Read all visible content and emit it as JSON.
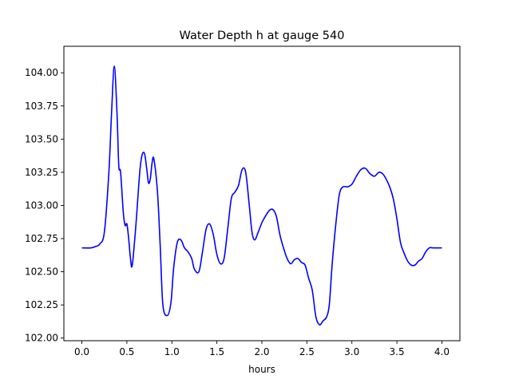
{
  "chart_data": {
    "type": "line",
    "title": "Water Depth h at gauge 540",
    "xlabel": "hours",
    "ylabel": "",
    "xlim": [
      -0.2,
      4.2
    ],
    "ylim": [
      101.98,
      104.2
    ],
    "grid": false,
    "legend": "none",
    "x_ticks": [
      0.0,
      0.5,
      1.0,
      1.5,
      2.0,
      2.5,
      3.0,
      3.5,
      4.0
    ],
    "x_tick_labels": [
      "0.0",
      "0.5",
      "1.0",
      "1.5",
      "2.0",
      "2.5",
      "3.0",
      "3.5",
      "4.0"
    ],
    "y_ticks": [
      102.0,
      102.25,
      102.5,
      102.75,
      103.0,
      103.25,
      103.5,
      103.75,
      104.0
    ],
    "y_tick_labels": [
      "102.00",
      "102.25",
      "102.50",
      "102.75",
      "103.00",
      "103.25",
      "103.50",
      "103.75",
      "104.00"
    ],
    "series": [
      {
        "color": "#0000ff",
        "x": [
          0.0,
          0.1,
          0.15,
          0.2,
          0.25,
          0.3,
          0.33,
          0.36,
          0.39,
          0.41,
          0.43,
          0.46,
          0.48,
          0.5,
          0.52,
          0.54,
          0.56,
          0.6,
          0.65,
          0.69,
          0.72,
          0.74,
          0.76,
          0.78,
          0.8,
          0.84,
          0.87,
          0.9,
          0.95,
          0.99,
          1.02,
          1.06,
          1.1,
          1.14,
          1.18,
          1.22,
          1.25,
          1.3,
          1.34,
          1.38,
          1.42,
          1.46,
          1.5,
          1.54,
          1.58,
          1.62,
          1.66,
          1.7,
          1.74,
          1.78,
          1.82,
          1.86,
          1.89,
          1.92,
          1.96,
          2.0,
          2.04,
          2.08,
          2.12,
          2.16,
          2.2,
          2.24,
          2.28,
          2.32,
          2.36,
          2.4,
          2.44,
          2.48,
          2.52,
          2.56,
          2.6,
          2.64,
          2.68,
          2.72,
          2.75,
          2.78,
          2.82,
          2.86,
          2.9,
          2.95,
          3.0,
          3.05,
          3.1,
          3.15,
          3.2,
          3.25,
          3.3,
          3.34,
          3.38,
          3.42,
          3.46,
          3.5,
          3.54,
          3.58,
          3.62,
          3.66,
          3.7,
          3.74,
          3.78,
          3.82,
          3.86,
          3.9,
          3.95,
          4.0
        ],
        "values": [
          102.68,
          102.68,
          102.69,
          102.71,
          102.8,
          103.25,
          103.7,
          104.05,
          103.7,
          103.3,
          103.25,
          102.95,
          102.85,
          102.86,
          102.75,
          102.6,
          102.55,
          102.85,
          103.3,
          103.4,
          103.28,
          103.17,
          103.2,
          103.32,
          103.35,
          103.1,
          102.7,
          102.25,
          102.17,
          102.27,
          102.53,
          102.72,
          102.74,
          102.68,
          102.65,
          102.6,
          102.52,
          102.5,
          102.65,
          102.82,
          102.86,
          102.78,
          102.63,
          102.56,
          102.6,
          102.82,
          103.05,
          103.1,
          103.15,
          103.27,
          103.25,
          103.0,
          102.8,
          102.74,
          102.8,
          102.87,
          102.92,
          102.96,
          102.97,
          102.92,
          102.78,
          102.68,
          102.6,
          102.56,
          102.59,
          102.6,
          102.57,
          102.55,
          102.45,
          102.36,
          102.16,
          102.1,
          102.13,
          102.16,
          102.26,
          102.55,
          102.85,
          103.08,
          103.14,
          103.14,
          103.16,
          103.22,
          103.27,
          103.28,
          103.24,
          103.22,
          103.25,
          103.24,
          103.2,
          103.14,
          103.05,
          102.9,
          102.72,
          102.64,
          102.58,
          102.55,
          102.55,
          102.58,
          102.6,
          102.65,
          102.68,
          102.68,
          102.68,
          102.68
        ]
      }
    ]
  }
}
